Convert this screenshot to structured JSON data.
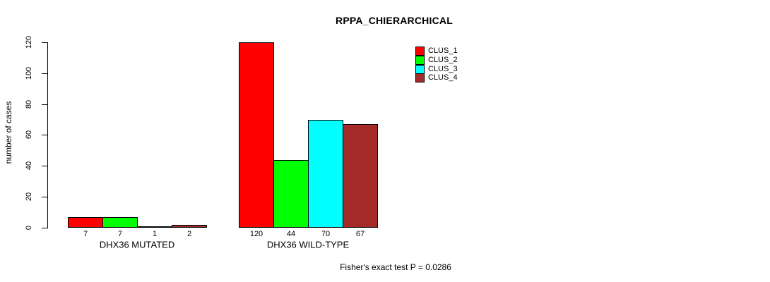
{
  "chart_data": {
    "type": "bar",
    "title": "RPPA_CHIERARCHICAL",
    "ylabel": "number of cases",
    "xlabel": "",
    "ylim": [
      0,
      120
    ],
    "yticks": [
      0,
      20,
      40,
      60,
      80,
      100,
      120
    ],
    "grid": false,
    "legend_position": "top-right",
    "categories": [
      "DHX36 MUTATED",
      "DHX36 WILD-TYPE"
    ],
    "series": [
      {
        "name": "CLUS_1",
        "color": "#ff0000",
        "values": [
          7,
          120
        ]
      },
      {
        "name": "CLUS_2",
        "color": "#00ff00",
        "values": [
          7,
          44
        ]
      },
      {
        "name": "CLUS_3",
        "color": "#00ffff",
        "values": [
          1,
          70
        ]
      },
      {
        "name": "CLUS_4",
        "color": "#a52a2a",
        "values": [
          2,
          67
        ]
      }
    ],
    "bar_value_labels": [
      [
        "7",
        "7",
        "1",
        "2"
      ],
      [
        "120",
        "44",
        "70",
        "67"
      ]
    ]
  },
  "footer": {
    "text": "Fisher's exact test P = 0.0286"
  }
}
